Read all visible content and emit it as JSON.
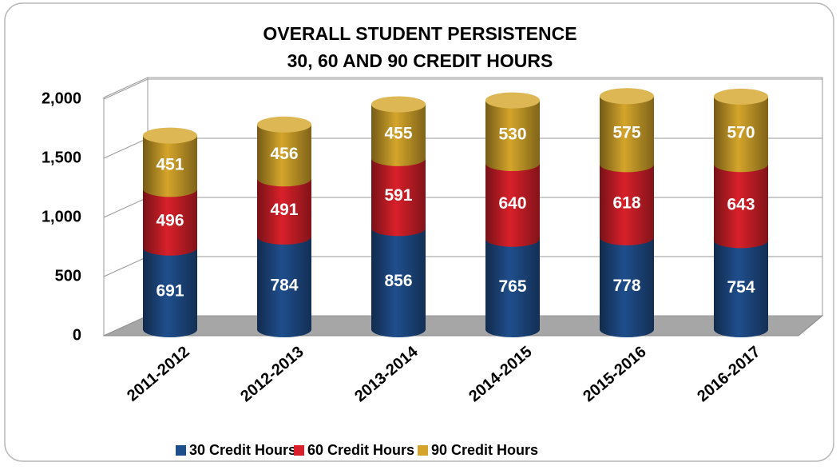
{
  "chart_data": {
    "type": "bar",
    "stacked": true,
    "title": "OVERALL STUDENT PERSISTENCE",
    "subtitle": "30, 60 AND 90 CREDIT HOURS",
    "categories": [
      "2011-2012",
      "2012-2013",
      "2013-2014",
      "2014-2015",
      "2015-2016",
      "2016-2017"
    ],
    "series": [
      {
        "name": "30 Credit Hours",
        "color": "#1f4e8c",
        "values": [
          691,
          784,
          856,
          765,
          778,
          754
        ]
      },
      {
        "name": "60 Credit Hours",
        "color": "#d9202a",
        "values": [
          496,
          491,
          591,
          640,
          618,
          643
        ]
      },
      {
        "name": "90 Credit Hours",
        "color": "#d4a52a",
        "values": [
          451,
          456,
          455,
          530,
          575,
          570
        ]
      }
    ],
    "ylim": [
      0,
      2000
    ],
    "yticks": [
      0,
      500,
      {
        "value": 1000,
        "label": "1,000"
      },
      {
        "value": 1500,
        "label": "1,500"
      },
      {
        "value": 2000,
        "label": "2,000"
      }
    ],
    "grid": true,
    "legend": "bottom"
  }
}
